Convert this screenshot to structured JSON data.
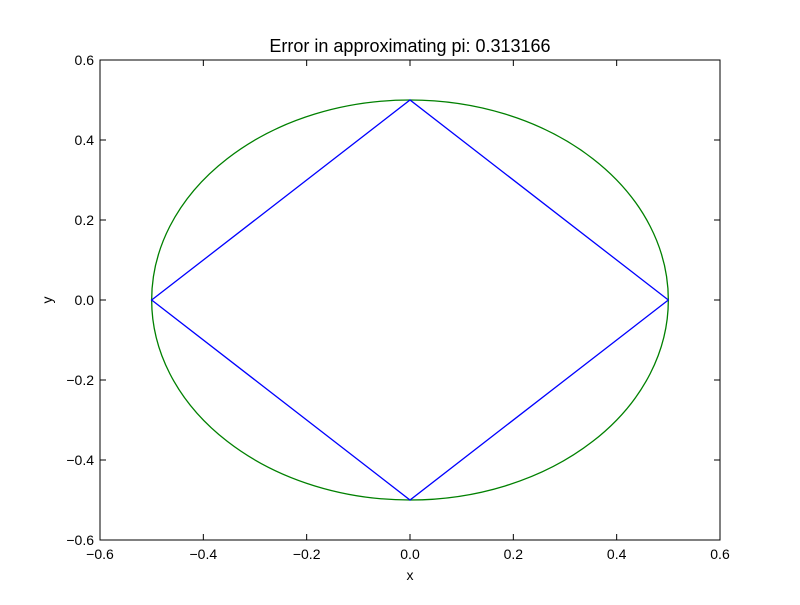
{
  "chart_data": {
    "type": "line",
    "title": "Error in approximating pi: 0.313166",
    "xlabel": "x",
    "ylabel": "y",
    "xlim": [
      -0.6,
      0.6
    ],
    "ylim": [
      -0.6,
      0.6
    ],
    "xticks": [
      -0.6,
      -0.4,
      -0.2,
      0.0,
      0.2,
      0.4,
      0.6
    ],
    "yticks": [
      -0.6,
      -0.4,
      -0.2,
      0.0,
      0.2,
      0.4,
      0.6
    ],
    "xtick_labels": [
      "−0.6",
      "−0.4",
      "−0.2",
      "0.0",
      "0.2",
      "0.4",
      "0.6"
    ],
    "ytick_labels": [
      "−0.6",
      "−0.4",
      "−0.2",
      "0.0",
      "0.2",
      "0.4",
      "0.6"
    ],
    "grid": false,
    "series": [
      {
        "kind": "circle",
        "color": "#008000",
        "center": [
          0,
          0
        ],
        "radius": 0.5
      },
      {
        "kind": "polygon",
        "color": "#0000ff",
        "x": [
          0.5,
          0.0,
          -0.5,
          0.0,
          0.5
        ],
        "y": [
          0.0,
          0.5,
          0.0,
          -0.5,
          0.0
        ]
      }
    ]
  }
}
